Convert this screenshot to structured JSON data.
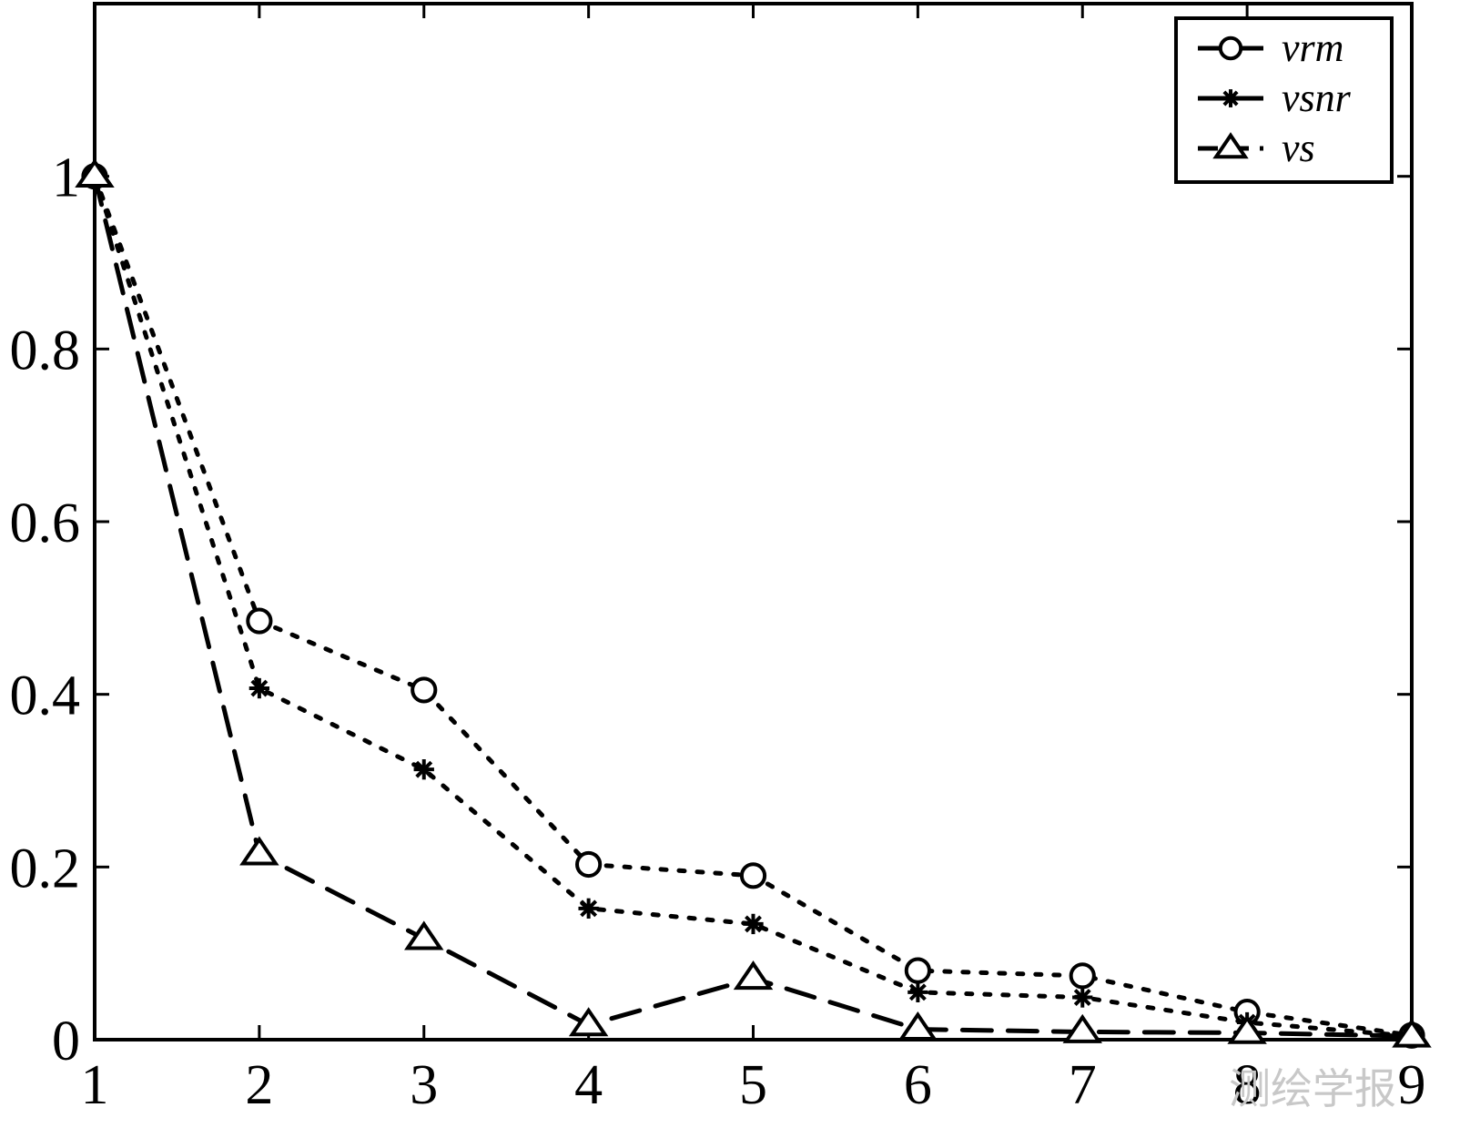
{
  "chart_data": {
    "type": "line",
    "title": "",
    "xlabel": "",
    "ylabel": "",
    "x": [
      1,
      2,
      3,
      4,
      5,
      6,
      7,
      8,
      9
    ],
    "xlim": [
      1,
      9
    ],
    "ylim": [
      0,
      1.2
    ],
    "x_ticks": [
      1,
      2,
      3,
      4,
      5,
      6,
      7,
      8,
      9
    ],
    "y_ticks": [
      0,
      0.2,
      0.4,
      0.6,
      0.8,
      1
    ],
    "x_tick_labels": [
      "1",
      "2",
      "3",
      "4",
      "5",
      "6",
      "7",
      "8",
      "9"
    ],
    "y_tick_labels": [
      "0",
      "0.2",
      "0.4",
      "0.6",
      "0.8",
      "1"
    ],
    "grid": false,
    "legend_position": "top-right",
    "series": [
      {
        "name": "vrm",
        "marker": "circle",
        "line_style": "dotted",
        "values": [
          1.0,
          0.485,
          0.405,
          0.203,
          0.19,
          0.08,
          0.074,
          0.032,
          0.005
        ]
      },
      {
        "name": "vsnr",
        "marker": "star",
        "line_style": "dotted",
        "values": [
          1.0,
          0.407,
          0.313,
          0.152,
          0.134,
          0.055,
          0.049,
          0.02,
          0.004
        ]
      },
      {
        "name": "vs",
        "marker": "triangle",
        "line_style": "dashed",
        "values": [
          1.0,
          0.215,
          0.117,
          0.017,
          0.071,
          0.012,
          0.009,
          0.008,
          0.004
        ]
      }
    ]
  },
  "watermark": "测绘学报"
}
